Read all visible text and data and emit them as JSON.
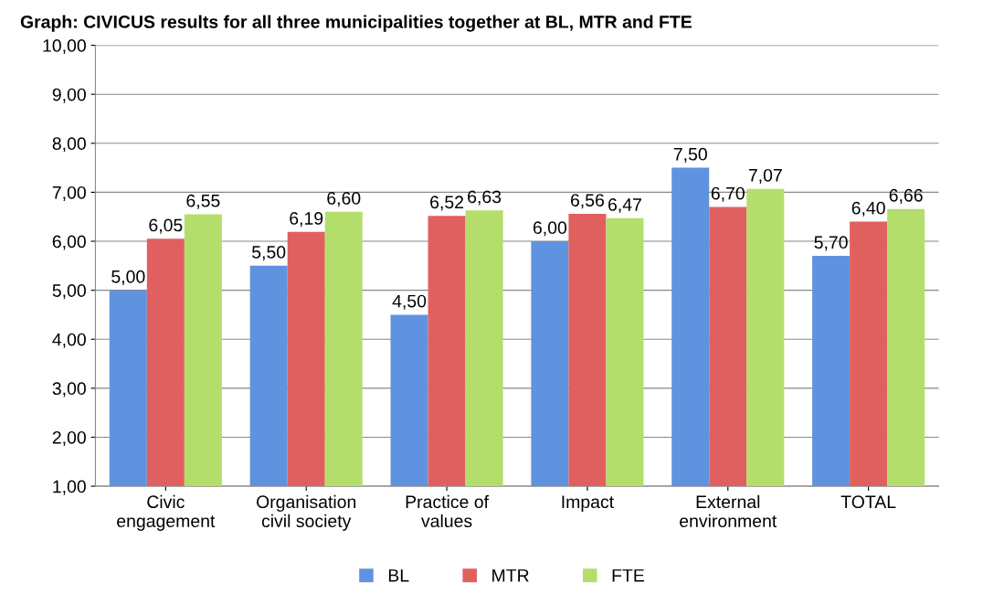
{
  "chart_data": {
    "type": "bar",
    "title": "Graph: CIVICUS results for all three municipalities together at BL, MTR and FTE",
    "categories": [
      "Civic\nengagement",
      "Organisation\ncivil society",
      "Practice of\nvalues",
      "Impact",
      "External\nenvironment",
      "TOTAL"
    ],
    "series": [
      {
        "name": "BL",
        "color": "#5f93e0",
        "values": [
          5.0,
          5.5,
          4.5,
          6.0,
          7.5,
          5.7
        ],
        "value_labels": [
          "5,00",
          "5,50",
          "4,50",
          "6,00",
          "7,50",
          "5,70"
        ]
      },
      {
        "name": "MTR",
        "color": "#e06060",
        "values": [
          6.05,
          6.19,
          6.52,
          6.56,
          6.7,
          6.4
        ],
        "value_labels": [
          "6,05",
          "6,19",
          "6,52",
          "6,56",
          "6,70",
          "6,40"
        ]
      },
      {
        "name": "FTE",
        "color": "#b4de6c",
        "values": [
          6.55,
          6.6,
          6.63,
          6.47,
          7.07,
          6.66
        ],
        "value_labels": [
          "6,55",
          "6,60",
          "6,63",
          "6,47",
          "7,07",
          "6,66"
        ]
      }
    ],
    "ylim": [
      1,
      10
    ],
    "yticks": [
      {
        "value": 1,
        "label": "1,00"
      },
      {
        "value": 2,
        "label": "2,00"
      },
      {
        "value": 3,
        "label": "3,00"
      },
      {
        "value": 4,
        "label": "4,00"
      },
      {
        "value": 5,
        "label": "5,00"
      },
      {
        "value": 6,
        "label": "6,00"
      },
      {
        "value": 7,
        "label": "7,00"
      },
      {
        "value": 8,
        "label": "8,00"
      },
      {
        "value": 9,
        "label": "9,00"
      },
      {
        "value": 10,
        "label": "10,00"
      }
    ],
    "grid": "y",
    "legend": "bottom"
  }
}
